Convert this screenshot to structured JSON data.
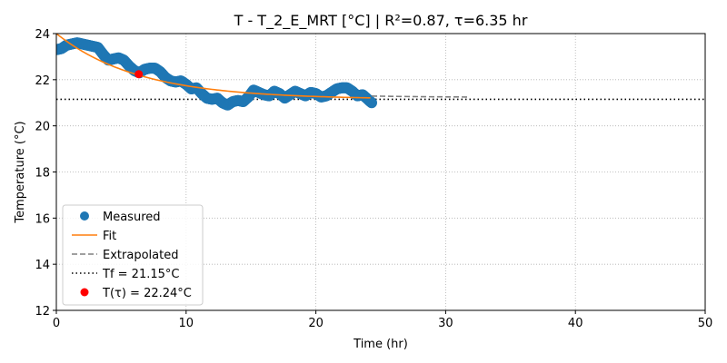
{
  "chart_data": {
    "type": "scatter",
    "title": "T - T_2_E_MRT  [°C] | R²=0.87, τ=6.35 hr",
    "xlabel": "Time (hr)",
    "ylabel": "Temperature (°C)",
    "xlim": [
      0,
      50
    ],
    "ylim": [
      12,
      24
    ],
    "xticks": [
      "0",
      "10",
      "20",
      "30",
      "40",
      "50"
    ],
    "yticks": [
      "12",
      "14",
      "16",
      "18",
      "20",
      "22",
      "24"
    ],
    "grid": true,
    "legend_position": "lower-left",
    "tf": 21.15,
    "t_tau": 22.24,
    "tau": 6.35,
    "fit_start": 24.0,
    "measured_end": 24.3,
    "extrapolate_end": 32.0,
    "colors": {
      "measured": "#1f77b4",
      "fit": "#ff7f0e",
      "extrapolated": "#808080",
      "tf_line": "#000000",
      "t_tau": "#ff0000",
      "grid": "#b0b0b0"
    },
    "measured_points": [
      [
        0.0,
        23.3
      ],
      [
        0.4,
        23.35
      ],
      [
        0.8,
        23.5
      ],
      [
        1.2,
        23.55
      ],
      [
        1.6,
        23.6
      ],
      [
        2.0,
        23.55
      ],
      [
        2.4,
        23.5
      ],
      [
        2.8,
        23.45
      ],
      [
        3.2,
        23.4
      ],
      [
        3.6,
        23.1
      ],
      [
        4.0,
        22.85
      ],
      [
        4.4,
        22.9
      ],
      [
        4.8,
        22.95
      ],
      [
        5.2,
        22.85
      ],
      [
        5.6,
        22.6
      ],
      [
        6.0,
        22.4
      ],
      [
        6.4,
        22.3
      ],
      [
        6.8,
        22.45
      ],
      [
        7.2,
        22.5
      ],
      [
        7.6,
        22.5
      ],
      [
        8.0,
        22.35
      ],
      [
        8.4,
        22.1
      ],
      [
        8.8,
        21.95
      ],
      [
        9.2,
        21.9
      ],
      [
        9.6,
        21.95
      ],
      [
        10.0,
        21.8
      ],
      [
        10.4,
        21.6
      ],
      [
        10.8,
        21.65
      ],
      [
        11.2,
        21.4
      ],
      [
        11.6,
        21.2
      ],
      [
        12.0,
        21.15
      ],
      [
        12.4,
        21.2
      ],
      [
        12.8,
        21.0
      ],
      [
        13.2,
        20.9
      ],
      [
        13.6,
        21.05
      ],
      [
        14.0,
        21.1
      ],
      [
        14.4,
        21.05
      ],
      [
        14.8,
        21.25
      ],
      [
        15.2,
        21.55
      ],
      [
        15.6,
        21.45
      ],
      [
        16.0,
        21.35
      ],
      [
        16.4,
        21.3
      ],
      [
        16.8,
        21.5
      ],
      [
        17.2,
        21.4
      ],
      [
        17.6,
        21.2
      ],
      [
        18.0,
        21.35
      ],
      [
        18.4,
        21.5
      ],
      [
        18.8,
        21.4
      ],
      [
        19.2,
        21.3
      ],
      [
        19.6,
        21.45
      ],
      [
        20.0,
        21.4
      ],
      [
        20.4,
        21.25
      ],
      [
        20.8,
        21.3
      ],
      [
        21.2,
        21.45
      ],
      [
        21.6,
        21.6
      ],
      [
        22.0,
        21.65
      ],
      [
        22.4,
        21.65
      ],
      [
        22.8,
        21.5
      ],
      [
        23.2,
        21.3
      ],
      [
        23.6,
        21.35
      ],
      [
        24.0,
        21.15
      ],
      [
        24.3,
        21.0
      ]
    ],
    "legend": [
      {
        "kind": "measured",
        "label": "Measured"
      },
      {
        "kind": "fit",
        "label": "Fit"
      },
      {
        "kind": "extrapolated",
        "label": "Extrapolated"
      },
      {
        "kind": "tf",
        "label": "Tf = 21.15°C"
      },
      {
        "kind": "t_tau",
        "label": "T(τ) = 22.24°C"
      }
    ]
  }
}
